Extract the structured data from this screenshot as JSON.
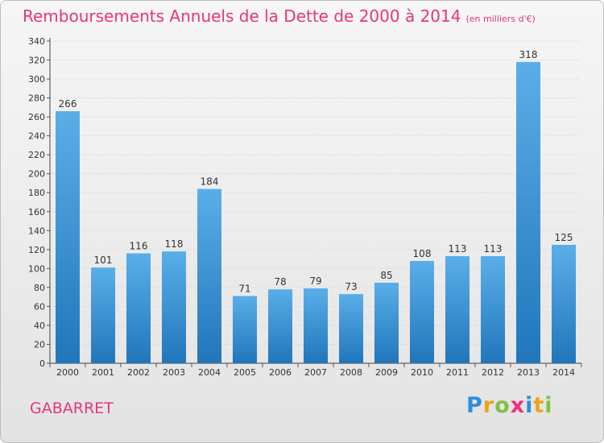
{
  "title": "Remboursements Annuels de la Dette de 2000 à 2014",
  "unit_note": "(en milliers d'€)",
  "town": "GABARRET",
  "logo": {
    "letters": [
      "P",
      "r",
      "o",
      "x",
      "i",
      "t",
      "i"
    ],
    "colors": [
      "#2f8fd8",
      "#f0a21a",
      "#7ec242",
      "#e8347a",
      "#2f8fd8",
      "#f0a21a",
      "#7ec242"
    ]
  },
  "colors": {
    "accent": "#e8347a",
    "bar_top": "#5aaee8",
    "bar_bottom": "#2176bb"
  },
  "chart_data": {
    "type": "bar",
    "categories": [
      "2000",
      "2001",
      "2002",
      "2003",
      "2004",
      "2005",
      "2006",
      "2007",
      "2008",
      "2009",
      "2010",
      "2011",
      "2012",
      "2013",
      "2014"
    ],
    "values": [
      266,
      101,
      116,
      118,
      184,
      71,
      78,
      79,
      73,
      85,
      108,
      113,
      113,
      318,
      125
    ],
    "ylim": [
      0,
      340
    ],
    "ytick_step": 20,
    "grid": true,
    "xlabel": "",
    "ylabel": ""
  }
}
